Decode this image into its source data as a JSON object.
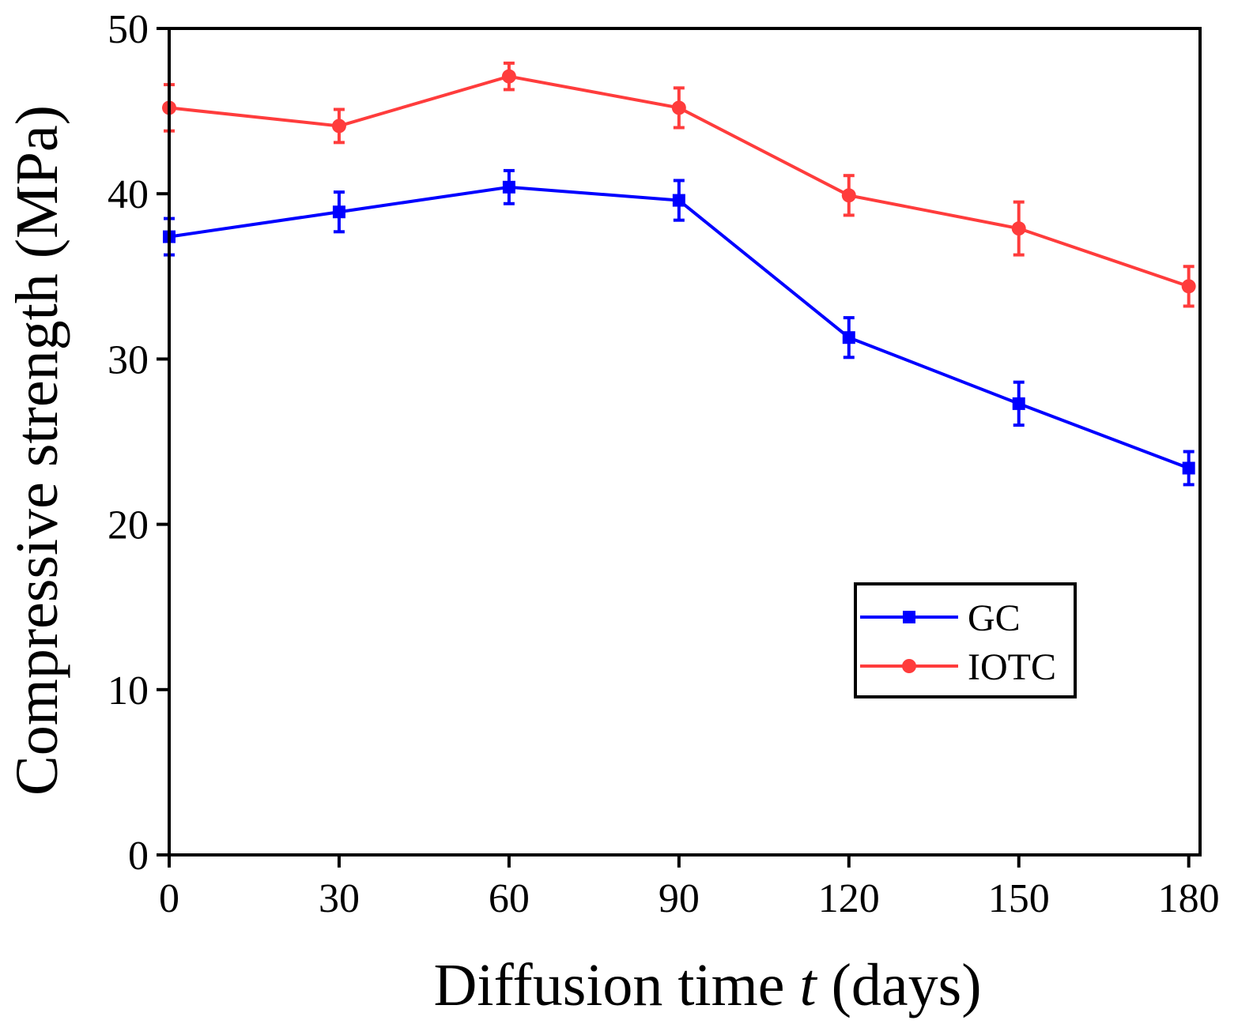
{
  "chart_data": {
    "type": "line",
    "title": "",
    "xlabel": "Diffusion time",
    "xlabel_var": "t",
    "xlabel_unit": "(days)",
    "ylabel": "Compressive strength (MPa)",
    "x": [
      0,
      30,
      60,
      90,
      120,
      150,
      180
    ],
    "xlim": [
      0,
      182
    ],
    "ylim": [
      0,
      50
    ],
    "xticks": [
      "0",
      "30",
      "60",
      "90",
      "120",
      "150",
      "180"
    ],
    "yticks": [
      "0",
      "10",
      "20",
      "30",
      "40",
      "50"
    ],
    "grid": false,
    "legend_position": "lower-right",
    "series": [
      {
        "name": "GC",
        "color": "#0000ff",
        "marker": "square",
        "values": [
          37.4,
          38.9,
          40.4,
          39.6,
          31.3,
          27.3,
          23.4
        ],
        "errors": [
          1.1,
          1.2,
          1.0,
          1.2,
          1.2,
          1.3,
          1.0
        ]
      },
      {
        "name": "IOTC",
        "color": "#ff3c3c",
        "marker": "circle",
        "values": [
          45.2,
          44.1,
          47.1,
          45.2,
          39.9,
          37.9,
          34.4
        ],
        "errors": [
          1.4,
          1.0,
          0.8,
          1.2,
          1.2,
          1.6,
          1.2
        ]
      }
    ]
  }
}
